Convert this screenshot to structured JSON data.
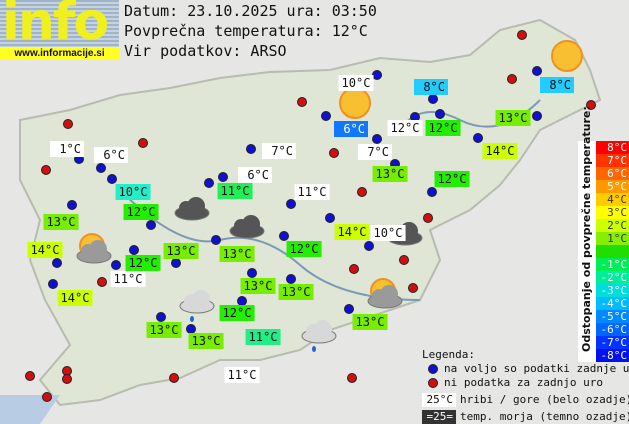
{
  "logo": {
    "text": "info",
    "url": "www.informacije.si"
  },
  "header": {
    "date_line": "Datum: 23.10.2025 ura: 03:50",
    "avg_line": "Povprečna temperatura: 12°C",
    "source_line": "Vir podatkov: ARSO"
  },
  "colors": {
    "blue_dot": "#1010d0",
    "red_dot": "#d01010",
    "white_label": "#ffffff"
  },
  "labels": [
    {
      "text": "10°C",
      "bg": "#ffffff"
    },
    {
      "text": "8°C",
      "bg": "#22ccff"
    },
    {
      "text": "8°C",
      "bg": "#22ccff"
    },
    {
      "text": "6°C",
      "bg": "#1177ff",
      "fg": "#ffffff"
    },
    {
      "text": "12°C",
      "bg": "#ffffff"
    },
    {
      "text": "12°C",
      "bg": "#22ee00"
    },
    {
      "text": "13°C",
      "bg": "#77ee00"
    },
    {
      "text": "1°C",
      "bg": "#ffffff"
    },
    {
      "text": "6°C",
      "bg": "#ffffff"
    },
    {
      "text": "14°C",
      "bg": "#ccff00"
    },
    {
      "text": "7°C",
      "bg": "#ffffff"
    },
    {
      "text": "7°C",
      "bg": "#ffffff"
    },
    {
      "text": "6°C",
      "bg": "#ffffff"
    },
    {
      "text": "13°C",
      "bg": "#77ee00"
    },
    {
      "text": "12°C",
      "bg": "#22ee00"
    },
    {
      "text": "10°C",
      "bg": "#22eecc"
    },
    {
      "text": "11°C",
      "bg": "#22ee55"
    },
    {
      "text": "11°C",
      "bg": "#ffffff"
    },
    {
      "text": "12°C",
      "bg": "#22ee00"
    },
    {
      "text": "13°C",
      "bg": "#77ee00"
    },
    {
      "text": "14°C",
      "bg": "#ccff00"
    },
    {
      "text": "10°C",
      "bg": "#ffffff"
    },
    {
      "text": "14°C",
      "bg": "#ccff00"
    },
    {
      "text": "13°C",
      "bg": "#77ee00"
    },
    {
      "text": "13°C",
      "bg": "#77ee00"
    },
    {
      "text": "12°C",
      "bg": "#22ee00"
    },
    {
      "text": "12°C",
      "bg": "#22ee00"
    },
    {
      "text": "11°C",
      "bg": "#ffffff"
    },
    {
      "text": "14°C",
      "bg": "#ccff00"
    },
    {
      "text": "13°C",
      "bg": "#77ee00"
    },
    {
      "text": "13°C",
      "bg": "#77ee00"
    },
    {
      "text": "13°C",
      "bg": "#77ee00"
    },
    {
      "text": "12°C",
      "bg": "#22ee00"
    },
    {
      "text": "13°C",
      "bg": "#77ee00"
    },
    {
      "text": "13°C",
      "bg": "#77ee00"
    },
    {
      "text": "11°C",
      "bg": "#22ee88"
    },
    {
      "text": "11°C",
      "bg": "#ffffff"
    }
  ],
  "dots": [
    "red",
    "red",
    "red",
    "red",
    "blue",
    "blue",
    "blue",
    "blue",
    "blue",
    "blue",
    "blue",
    "blue",
    "blue",
    "blue",
    "blue",
    "blue",
    "red",
    "blue",
    "blue",
    "blue",
    "red",
    "blue",
    "blue",
    "blue",
    "blue",
    "blue",
    "blue",
    "red",
    "blue",
    "red",
    "blue",
    "red",
    "blue",
    "red",
    "blue",
    "blue",
    "blue",
    "blue",
    "red",
    "red",
    "red",
    "blue",
    "blue",
    "red",
    "blue",
    "blue",
    "blue",
    "blue",
    "blue",
    "red",
    "red",
    "red",
    "red",
    "red",
    "red"
  ],
  "weather_icons": [
    "sun",
    "sun",
    "partly-cloudy",
    "partly-cloudy",
    "dark-cloud",
    "dark-cloud",
    "dark-cloud",
    "cloud-rain",
    "cloud-rain"
  ],
  "scale": {
    "title": "Odstopanje od povprečne temperature:",
    "steps": [
      {
        "t": "8°C",
        "c": "#ff0000"
      },
      {
        "t": "7°C",
        "c": "#ff3300"
      },
      {
        "t": "6°C",
        "c": "#ff6600"
      },
      {
        "t": "5°C",
        "c": "#ff9900"
      },
      {
        "t": "4°C",
        "c": "#ffcc00"
      },
      {
        "t": "3°C",
        "c": "#ffff00"
      },
      {
        "t": "2°C",
        "c": "#ccff00"
      },
      {
        "t": "1°C",
        "c": "#88ee00"
      },
      {
        "t": "",
        "c": "#22dd00"
      },
      {
        "t": "-1°C",
        "c": "#00ee55"
      },
      {
        "t": "-2°C",
        "c": "#00ee99"
      },
      {
        "t": "-3°C",
        "c": "#00dddd"
      },
      {
        "t": "-4°C",
        "c": "#00bbff"
      },
      {
        "t": "-5°C",
        "c": "#0088ff"
      },
      {
        "t": "-6°C",
        "c": "#0066ff"
      },
      {
        "t": "-7°C",
        "c": "#0033ff"
      },
      {
        "t": "-8°C",
        "c": "#0011ee"
      }
    ]
  },
  "legend": {
    "title": "Legenda:",
    "blue": "na voljo so podatki zadnje ure",
    "red": "ni podatka za zadnjo uro",
    "white_sample": "25°C",
    "white_text": "hribi / gore (belo ozadje)",
    "dark_sample": "=25=",
    "dark_text": "temp. morja (temno ozadje)"
  }
}
